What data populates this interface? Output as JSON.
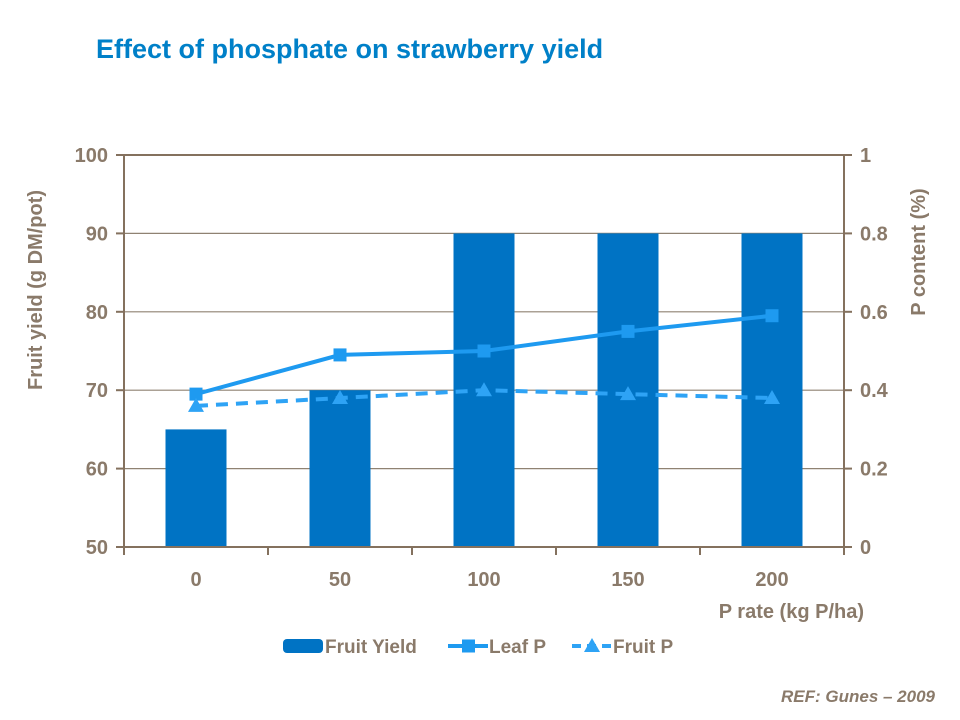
{
  "header": {
    "title": "Effect of phosphate on strawberry yield",
    "title_color": "#0080C8"
  },
  "footer": {
    "reference": "REF: Gunes – 2009"
  },
  "chart_data": {
    "type": "bar",
    "categories": [
      0,
      50,
      100,
      150,
      200
    ],
    "series": [
      {
        "name": "Fruit Yield",
        "type": "bar",
        "axis": "left",
        "values": [
          65,
          70,
          90,
          90,
          90
        ],
        "color": "#0073C4"
      },
      {
        "name": "Leaf P",
        "type": "line",
        "style": "solid",
        "marker": "square",
        "axis": "right",
        "values": [
          0.39,
          0.49,
          0.5,
          0.55,
          0.59
        ],
        "color": "#1E9AF0"
      },
      {
        "name": "Fruit P",
        "type": "line",
        "style": "dashed",
        "marker": "triangle",
        "axis": "right",
        "values": [
          0.36,
          0.38,
          0.4,
          0.39,
          0.38
        ],
        "color": "#2EA3F5"
      }
    ],
    "left_axis": {
      "title": "Fruit yield (g DM/pot)",
      "min": 50,
      "max": 100,
      "step": 10,
      "ticks": [
        "50",
        "60",
        "70",
        "80",
        "90",
        "100"
      ]
    },
    "right_axis": {
      "title": "P content (%)",
      "min": 0,
      "max": 1,
      "step": 0.2,
      "ticks": [
        "0",
        "0.2",
        "0.4",
        "0.6",
        "0.8",
        "1"
      ]
    },
    "x_axis": {
      "title": "P rate (kg P/ha)",
      "labels": [
        "0",
        "50",
        "100",
        "150",
        "200"
      ]
    },
    "legend": {
      "position": "bottom",
      "entries": [
        "Fruit Yield",
        "Leaf P",
        "Fruit P"
      ]
    },
    "grid": true,
    "colors": {
      "axis_text": "#8A7A6A",
      "border": "#84715E",
      "gridline": "#8F8272"
    }
  }
}
